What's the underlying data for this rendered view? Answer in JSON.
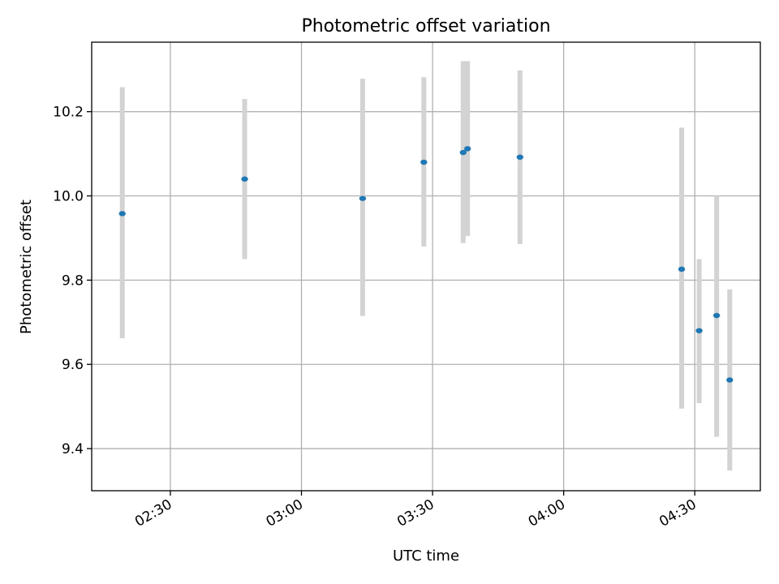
{
  "chart_data": {
    "type": "scatter",
    "title": "Photometric offset variation",
    "xlabel": "UTC time",
    "ylabel": "Photometric offset",
    "x_unit": "time",
    "xlim": [
      "02:12",
      "04:45"
    ],
    "ylim": [
      9.3,
      10.365
    ],
    "x_ticks": [
      "02:30",
      "03:00",
      "03:30",
      "04:00",
      "04:30"
    ],
    "y_ticks": [
      "9.4",
      "9.6",
      "9.8",
      "10.0",
      "10.2"
    ],
    "grid": true,
    "colors": {
      "point": "#1f77b4",
      "errorbar": "#d3d3d3",
      "grid": "#b0b0b0"
    },
    "series": [
      {
        "points": [
          {
            "x": "02:19",
            "y": 9.958,
            "y_low": 9.662,
            "y_high": 10.258
          },
          {
            "x": "02:47",
            "y": 10.04,
            "y_low": 9.85,
            "y_high": 10.23
          },
          {
            "x": "03:14",
            "y": 9.994,
            "y_low": 9.715,
            "y_high": 10.278
          },
          {
            "x": "03:28",
            "y": 10.08,
            "y_low": 9.88,
            "y_high": 10.282
          },
          {
            "x": "03:37",
            "y": 10.103,
            "y_low": 9.888,
            "y_high": 10.32
          },
          {
            "x": "03:38",
            "y": 10.112,
            "y_low": 9.905,
            "y_high": 10.32
          },
          {
            "x": "03:50",
            "y": 10.092,
            "y_low": 9.886,
            "y_high": 10.298
          },
          {
            "x": "04:27",
            "y": 9.826,
            "y_low": 9.495,
            "y_high": 10.162
          },
          {
            "x": "04:31",
            "y": 9.68,
            "y_low": 9.508,
            "y_high": 9.85
          },
          {
            "x": "04:35",
            "y": 9.716,
            "y_low": 9.428,
            "y_high": 10.0
          },
          {
            "x": "04:38",
            "y": 9.563,
            "y_low": 9.348,
            "y_high": 9.778
          }
        ]
      }
    ]
  }
}
